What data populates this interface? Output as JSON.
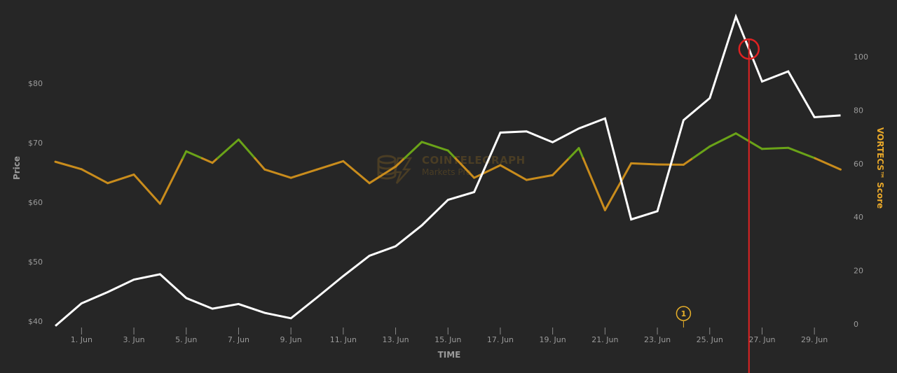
{
  "chart_data": {
    "type": "line",
    "xlabel": "TIME",
    "ylabel_left": "Price",
    "ylabel_right": "VORTECS™ Score",
    "x": [
      "31 May",
      "1 Jun",
      "2 Jun",
      "3 Jun",
      "4 Jun",
      "5 Jun",
      "6 Jun",
      "7 Jun",
      "8 Jun",
      "9 Jun",
      "10 Jun",
      "11 Jun",
      "12 Jun",
      "13 Jun",
      "14 Jun",
      "15 Jun",
      "16 Jun",
      "17 Jun",
      "18 Jun",
      "19 Jun",
      "20 Jun",
      "21 Jun",
      "22 Jun",
      "23 Jun",
      "24 Jun",
      "25 Jun",
      "26 Jun",
      "27 Jun",
      "28 Jun",
      "29 Jun",
      "30 Jun"
    ],
    "x_tick_labels": [
      "1. Jun",
      "3. Jun",
      "5. Jun",
      "7. Jun",
      "9. Jun",
      "11. Jun",
      "13. Jun",
      "15. Jun",
      "17. Jun",
      "19. Jun",
      "21. Jun",
      "23. Jun",
      "25. Jun",
      "27. Jun",
      "29. Jun"
    ],
    "y_left_ticks": [
      "$40",
      "$50",
      "$60",
      "$70",
      "$80"
    ],
    "y_right_ticks": [
      "0",
      "20",
      "40",
      "60",
      "80",
      "100"
    ],
    "y_left_range": [
      40,
      80
    ],
    "y_right_range": [
      0,
      100
    ],
    "series": [
      {
        "axis": "left",
        "color": "#ffffff",
        "values": [
          39.2,
          43.0,
          44.9,
          47.0,
          47.9,
          43.9,
          42.1,
          42.9,
          41.4,
          40.5,
          44.0,
          47.6,
          51.0,
          52.6,
          56.1,
          60.4,
          61.7,
          71.7,
          71.9,
          70.1,
          72.4,
          74.1,
          57.1,
          58.5,
          73.8,
          77.5,
          91.2,
          80.3,
          82.0,
          74.3,
          74.6
        ]
      },
      {
        "axis": "right",
        "color_low": "#c98c1c",
        "color_high": "#6aa318",
        "threshold": 62,
        "values": [
          60.7,
          57.9,
          52.7,
          55.9,
          45.0,
          64.6,
          60.3,
          69.0,
          57.8,
          54.7,
          57.8,
          60.9,
          52.7,
          58.9,
          68.1,
          64.9,
          54.7,
          59.4,
          53.9,
          55.7,
          65.8,
          42.6,
          60.1,
          59.7,
          59.6,
          66.4,
          71.3,
          65.5,
          65.9,
          62.1,
          57.8
        ]
      }
    ],
    "event_marker": {
      "label": "1",
      "x": "24 Jun",
      "color": "#e8b02a"
    },
    "highlight_line": {
      "x": "26.5 Jun",
      "color": "#e02222"
    },
    "watermark": {
      "title": "COINTELEGRAPH",
      "subtitle": "Markets Pro"
    },
    "grid": false,
    "legend": "none"
  }
}
